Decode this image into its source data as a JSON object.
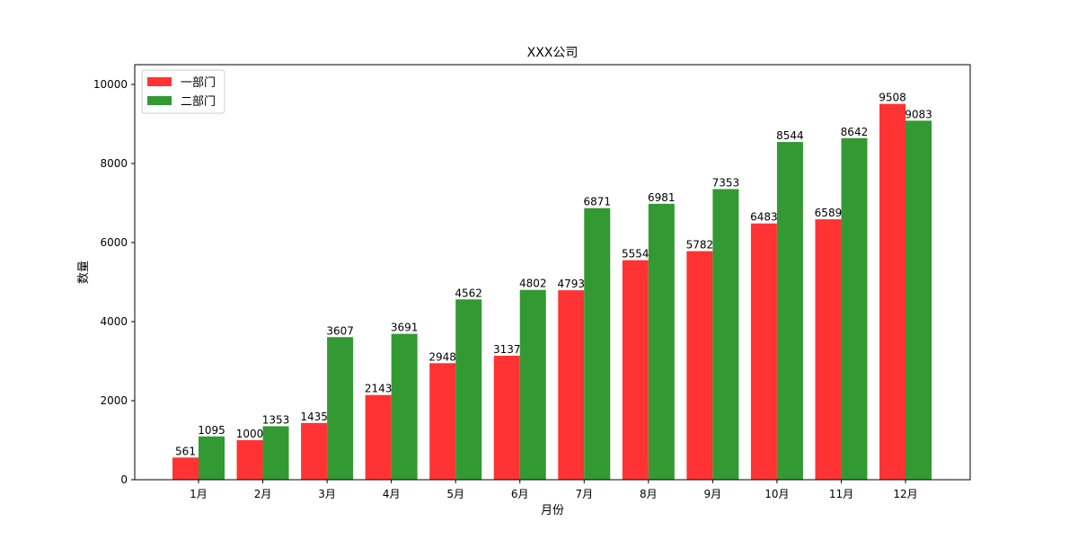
{
  "chart_data": {
    "type": "bar",
    "title": "XXX公司",
    "xlabel": "月份",
    "ylabel": "数量",
    "categories": [
      "1月",
      "2月",
      "3月",
      "4月",
      "5月",
      "6月",
      "7月",
      "8月",
      "9月",
      "10月",
      "11月",
      "12月"
    ],
    "series": [
      {
        "name": "一部门",
        "color": "#ff3333",
        "values": [
          561,
          1000,
          1435,
          2143,
          2948,
          3137,
          4793,
          5554,
          5782,
          6483,
          6589,
          9508
        ]
      },
      {
        "name": "二部门",
        "color": "#339933",
        "values": [
          1095,
          1353,
          3607,
          3691,
          4562,
          4802,
          6871,
          6981,
          7353,
          8544,
          8642,
          9083
        ]
      }
    ],
    "ylim": [
      0,
      10500
    ],
    "yticks": [
      0,
      2000,
      4000,
      6000,
      8000,
      10000
    ],
    "grid": false,
    "legend": "upper-left",
    "data_labels": true
  }
}
